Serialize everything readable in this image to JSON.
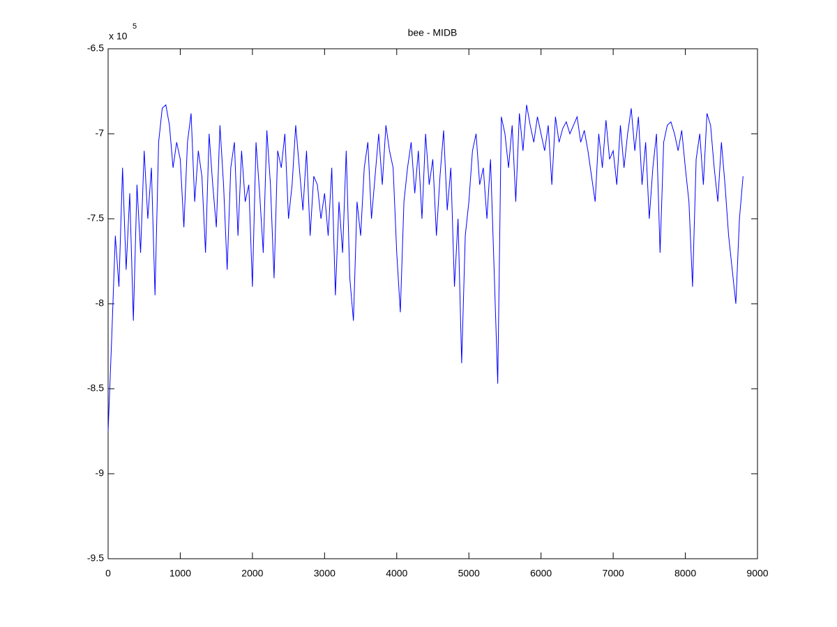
{
  "chart_data": {
    "type": "line",
    "title": "bee - MIDB",
    "y_multiplier": "x 10",
    "y_multiplier_exponent": "5",
    "series": [
      {
        "color": "#0000ff",
        "x": [
          0,
          50,
          100,
          150,
          200,
          250,
          300,
          350,
          400,
          450,
          500,
          550,
          600,
          650,
          700,
          750,
          800,
          850,
          900,
          950,
          1000,
          1050,
          1100,
          1150,
          1200,
          1250,
          1300,
          1350,
          1400,
          1450,
          1500,
          1550,
          1600,
          1650,
          1700,
          1750,
          1800,
          1850,
          1900,
          1950,
          2000,
          2050,
          2100,
          2150,
          2200,
          2250,
          2300,
          2350,
          2400,
          2450,
          2500,
          2550,
          2600,
          2650,
          2700,
          2750,
          2800,
          2850,
          2900,
          2950,
          3000,
          3050,
          3100,
          3150,
          3200,
          3250,
          3300,
          3350,
          3400,
          3450,
          3500,
          3550,
          3600,
          3650,
          3700,
          3750,
          3800,
          3850,
          3900,
          3950,
          4000,
          4050,
          4100,
          4150,
          4200,
          4250,
          4300,
          4350,
          4400,
          4450,
          4500,
          4550,
          4600,
          4650,
          4700,
          4750,
          4800,
          4850,
          4900,
          4950,
          5000,
          5050,
          5100,
          5150,
          5200,
          5250,
          5300,
          5350,
          5400,
          5450,
          5500,
          5550,
          5600,
          5650,
          5700,
          5750,
          5800,
          5850,
          5900,
          5950,
          6000,
          6050,
          6100,
          6150,
          6200,
          6250,
          6300,
          6350,
          6400,
          6450,
          6500,
          6550,
          6600,
          6650,
          6700,
          6750,
          6800,
          6850,
          6900,
          6950,
          7000,
          7050,
          7100,
          7150,
          7200,
          7250,
          7300,
          7350,
          7400,
          7450,
          7500,
          7550,
          7600,
          7650,
          7700,
          7750,
          7800,
          7850,
          7900,
          7950,
          8000,
          8050,
          8100,
          8150,
          8200,
          8250,
          8300,
          8350,
          8400,
          8450,
          8500,
          8550,
          8600,
          8650,
          8700,
          8750,
          8800
        ],
        "values": [
          -8.75,
          -8.2,
          -7.6,
          -7.9,
          -7.2,
          -7.8,
          -7.35,
          -8.1,
          -7.3,
          -7.7,
          -7.1,
          -7.5,
          -7.2,
          -7.95,
          -7.05,
          -6.85,
          -6.83,
          -6.95,
          -7.2,
          -7.05,
          -7.15,
          -7.55,
          -7.05,
          -6.88,
          -7.4,
          -7.1,
          -7.25,
          -7.7,
          -7.0,
          -7.3,
          -7.55,
          -6.95,
          -7.3,
          -7.8,
          -7.2,
          -7.05,
          -7.6,
          -7.1,
          -7.4,
          -7.3,
          -7.9,
          -7.05,
          -7.35,
          -7.7,
          -6.98,
          -7.3,
          -7.85,
          -7.1,
          -7.2,
          -7.0,
          -7.5,
          -7.3,
          -6.95,
          -7.2,
          -7.45,
          -7.1,
          -7.6,
          -7.25,
          -7.3,
          -7.5,
          -7.35,
          -7.6,
          -7.2,
          -7.95,
          -7.4,
          -7.7,
          -7.1,
          -7.85,
          -8.1,
          -7.4,
          -7.6,
          -7.2,
          -7.05,
          -7.5,
          -7.25,
          -7.0,
          -7.3,
          -6.95,
          -7.1,
          -7.2,
          -7.7,
          -8.05,
          -7.4,
          -7.2,
          -7.05,
          -7.35,
          -7.1,
          -7.5,
          -7.0,
          -7.3,
          -7.15,
          -7.6,
          -7.25,
          -6.98,
          -7.45,
          -7.2,
          -7.9,
          -7.5,
          -8.35,
          -7.6,
          -7.4,
          -7.1,
          -7.0,
          -7.3,
          -7.2,
          -7.5,
          -7.15,
          -7.8,
          -8.47,
          -6.9,
          -7.0,
          -7.2,
          -6.95,
          -7.4,
          -6.88,
          -7.1,
          -6.83,
          -6.95,
          -7.05,
          -6.9,
          -7.0,
          -7.1,
          -6.95,
          -7.3,
          -6.9,
          -7.05,
          -6.97,
          -6.93,
          -7.0,
          -6.95,
          -6.9,
          -7.05,
          -6.98,
          -7.1,
          -7.25,
          -7.4,
          -7.0,
          -7.2,
          -6.92,
          -7.15,
          -7.1,
          -7.3,
          -6.95,
          -7.2,
          -7.0,
          -6.85,
          -7.1,
          -6.9,
          -7.3,
          -7.05,
          -7.5,
          -7.2,
          -7.0,
          -7.7,
          -7.05,
          -6.95,
          -6.93,
          -7.0,
          -7.1,
          -6.98,
          -7.2,
          -7.4,
          -7.9,
          -7.15,
          -7.0,
          -7.3,
          -6.88,
          -6.95,
          -7.2,
          -7.4,
          -7.05,
          -7.3,
          -7.6,
          -7.8,
          -8.0,
          -7.5,
          -7.25
        ]
      }
    ],
    "xlim": [
      0,
      9000
    ],
    "xticks": [
      0,
      1000,
      2000,
      3000,
      4000,
      5000,
      6000,
      7000,
      8000,
      9000
    ],
    "ylim": [
      -9.5,
      -6.5
    ],
    "yticks": [
      -6.5,
      -7,
      -7.5,
      -8,
      -8.5,
      -9,
      -9.5
    ],
    "grid": false
  }
}
